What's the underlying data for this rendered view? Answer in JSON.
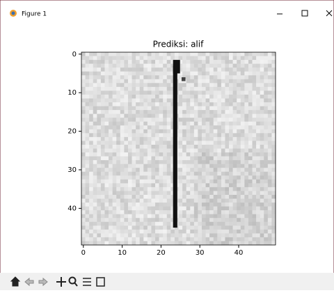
{
  "window": {
    "title": "Figure 1"
  },
  "chart_data": {
    "type": "image",
    "title": "Prediksi: alif",
    "xlim": [
      -0.5,
      49.5
    ],
    "ylim": [
      49.5,
      -0.5
    ],
    "xticks": [
      0,
      10,
      20,
      30,
      40
    ],
    "yticks": [
      0,
      10,
      20,
      30,
      40
    ]
  }
}
